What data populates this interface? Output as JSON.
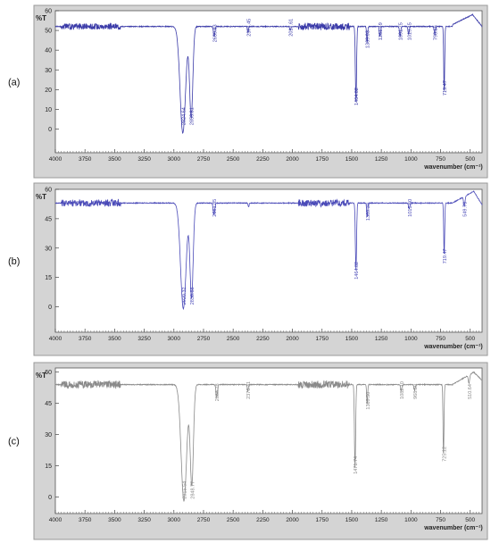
{
  "chart_data": [
    {
      "type": "line",
      "panel_label": "(a)",
      "ylabel": "%T",
      "xlabel": "wavenumber (cm⁻¹)",
      "xlim": [
        4000,
        400
      ],
      "x_reversed": true,
      "ylim": [
        -12,
        60
      ],
      "x_ticks": [
        "4000",
        "3750",
        "3500",
        "3250",
        "3000",
        "2750",
        "2500",
        "2250",
        "2000",
        "1750",
        "1500",
        "1250",
        "1000",
        "750",
        "500"
      ],
      "y_ticks": [
        "0",
        "10",
        "20",
        "30",
        "40",
        "50",
        "60"
      ],
      "series": [
        {
          "color": "#3a3aa8",
          "baseline": 52,
          "noise": [
            {
              "from": 3950,
              "to": 3450,
              "amp": 1.5
            },
            {
              "from": 1950,
              "to": 1520,
              "amp": 1.8
            }
          ],
          "peaks": [
            {
              "x": 2924.64,
              "depth": 54,
              "width": 55
            },
            {
              "x": 2853.81,
              "depth": 46,
              "width": 32
            },
            {
              "x": 2659.93,
              "depth": 5,
              "width": 15
            },
            {
              "x": 2374.45,
              "depth": 3,
              "width": 10
            },
            {
              "x": 2017.61,
              "depth": 2,
              "width": 10
            },
            {
              "x": 1464.02,
              "depth": 38,
              "width": 12
            },
            {
              "x": 1369.93,
              "depth": 8,
              "width": 10
            },
            {
              "x": 1261.49,
              "depth": 5,
              "width": 12
            },
            {
              "x": 1091.75,
              "depth": 5,
              "width": 12
            },
            {
              "x": 1019.45,
              "depth": 4,
              "width": 12
            },
            {
              "x": 798.56,
              "depth": 4,
              "width": 12
            },
            {
              "x": 719.47,
              "depth": 33,
              "width": 10
            }
          ],
          "tail": [
            {
              "x": 650,
              "y": 53
            },
            {
              "x": 480,
              "y": 58
            },
            {
              "x": 400,
              "y": 52
            }
          ]
        }
      ],
      "annotations": [
        {
          "text": "2924.64",
          "x": 2924.64,
          "y": 2
        },
        {
          "text": "2853.81",
          "x": 2853.81,
          "y": 2
        },
        {
          "text": "2659.93",
          "x": 2659.93,
          "y": 44
        },
        {
          "text": "2374.45",
          "x": 2374.45,
          "y": 47
        },
        {
          "text": "2017.61",
          "x": 2017.61,
          "y": 47
        },
        {
          "text": "1464.02",
          "x": 1464.02,
          "y": 12
        },
        {
          "text": "1369.93",
          "x": 1369.93,
          "y": 41
        },
        {
          "text": "1261.49",
          "x": 1261.49,
          "y": 45
        },
        {
          "text": "1091.75",
          "x": 1091.75,
          "y": 45
        },
        {
          "text": "1019.45",
          "x": 1019.45,
          "y": 45
        },
        {
          "text": "798.56",
          "x": 798.56,
          "y": 45
        },
        {
          "text": "719.47",
          "x": 719.47,
          "y": 17
        }
      ]
    },
    {
      "type": "line",
      "panel_label": "(b)",
      "ylabel": "%T",
      "xlabel": "wavenumber (cm⁻¹)",
      "xlim": [
        4000,
        400
      ],
      "x_reversed": true,
      "ylim": [
        -13,
        60
      ],
      "x_ticks": [
        "4000",
        "3750",
        "3500",
        "3250",
        "3000",
        "2750",
        "2500",
        "2250",
        "2000",
        "1750",
        "1500",
        "1250",
        "1000",
        "750",
        "500"
      ],
      "y_ticks": [
        "0",
        "15",
        "30",
        "45",
        "60"
      ],
      "series": [
        {
          "color": "#4a4ab8",
          "baseline": 53,
          "noise": [
            {
              "from": 3950,
              "to": 3450,
              "amp": 1.8
            },
            {
              "from": 1950,
              "to": 1520,
              "amp": 1.8
            }
          ],
          "peaks": [
            {
              "x": 2920.32,
              "depth": 54,
              "width": 55
            },
            {
              "x": 2850.88,
              "depth": 48,
              "width": 32
            },
            {
              "x": 2661.85,
              "depth": 6,
              "width": 15
            },
            {
              "x": 2370,
              "depth": 2,
              "width": 10
            },
            {
              "x": 1464.02,
              "depth": 34,
              "width": 12
            },
            {
              "x": 1369.3,
              "depth": 7,
              "width": 10
            },
            {
              "x": 1015.5,
              "depth": 3,
              "width": 12
            },
            {
              "x": 719.47,
              "depth": 26,
              "width": 10
            },
            {
              "x": 549.73,
              "depth": 5,
              "width": 14
            }
          ],
          "tail": [
            {
              "x": 650,
              "y": 53
            },
            {
              "x": 470,
              "y": 59
            },
            {
              "x": 400,
              "y": 52
            }
          ]
        }
      ],
      "annotations": [
        {
          "text": "2920.32",
          "x": 2920.32,
          "y": 1
        },
        {
          "text": "2850.88",
          "x": 2850.88,
          "y": 1
        },
        {
          "text": "2661.85",
          "x": 2661.85,
          "y": 46
        },
        {
          "text": "1464.02",
          "x": 1464.02,
          "y": 14
        },
        {
          "text": "1369.30",
          "x": 1369.3,
          "y": 44
        },
        {
          "text": "1015.50",
          "x": 1015.5,
          "y": 46
        },
        {
          "text": "719.47",
          "x": 719.47,
          "y": 22
        },
        {
          "text": "549.73",
          "x": 549.73,
          "y": 46
        }
      ]
    },
    {
      "type": "line",
      "panel_label": "(c)",
      "ylabel": "%T",
      "xlabel": "wavenumber (cm⁻¹)",
      "xlim": [
        4000,
        400
      ],
      "x_reversed": true,
      "ylim": [
        -8,
        62
      ],
      "x_ticks": [
        "4000",
        "3750",
        "3500",
        "3250",
        "3000",
        "2750",
        "2500",
        "2250",
        "2000",
        "1750",
        "1500",
        "1250",
        "1000",
        "750",
        "500"
      ],
      "y_ticks": [
        "0",
        "15",
        "30",
        "45",
        "60"
      ],
      "series": [
        {
          "color": "#8a8a8a",
          "baseline": 54,
          "noise": [
            {
              "from": 3950,
              "to": 3450,
              "amp": 1.8
            },
            {
              "from": 1950,
              "to": 1520,
              "amp": 1.8
            }
          ],
          "peaks": [
            {
              "x": 2915.54,
              "depth": 56,
              "width": 55
            },
            {
              "x": 2848.77,
              "depth": 48,
              "width": 32
            },
            {
              "x": 2638.78,
              "depth": 6,
              "width": 15
            },
            {
              "x": 2376.31,
              "depth": 3,
              "width": 10
            },
            {
              "x": 1471.74,
              "depth": 40,
              "width": 12
            },
            {
              "x": 1369.5,
              "depth": 9,
              "width": 10
            },
            {
              "x": 1082.1,
              "depth": 3,
              "width": 12
            },
            {
              "x": 968.5,
              "depth": 3,
              "width": 12
            },
            {
              "x": 725.12,
              "depth": 34,
              "width": 10
            },
            {
              "x": 510.64,
              "depth": 4,
              "width": 14
            }
          ],
          "tail": [
            {
              "x": 650,
              "y": 54
            },
            {
              "x": 470,
              "y": 60
            },
            {
              "x": 400,
              "y": 56
            }
          ]
        }
      ],
      "annotations": [
        {
          "text": "2915.54",
          "x": 2915.54,
          "y": -1
        },
        {
          "text": "2848.77",
          "x": 2848.77,
          "y": -1
        },
        {
          "text": "2638.78",
          "x": 2638.78,
          "y": 46
        },
        {
          "text": "2376.31",
          "x": 2376.31,
          "y": 47
        },
        {
          "text": "1471.74",
          "x": 1471.74,
          "y": 11
        },
        {
          "text": "1369.50",
          "x": 1369.5,
          "y": 42
        },
        {
          "text": "1082.10",
          "x": 1082.1,
          "y": 47
        },
        {
          "text": "968.50",
          "x": 968.5,
          "y": 47
        },
        {
          "text": "725.12",
          "x": 725.12,
          "y": 17
        },
        {
          "text": "510.64",
          "x": 510.64,
          "y": 47
        }
      ]
    }
  ]
}
